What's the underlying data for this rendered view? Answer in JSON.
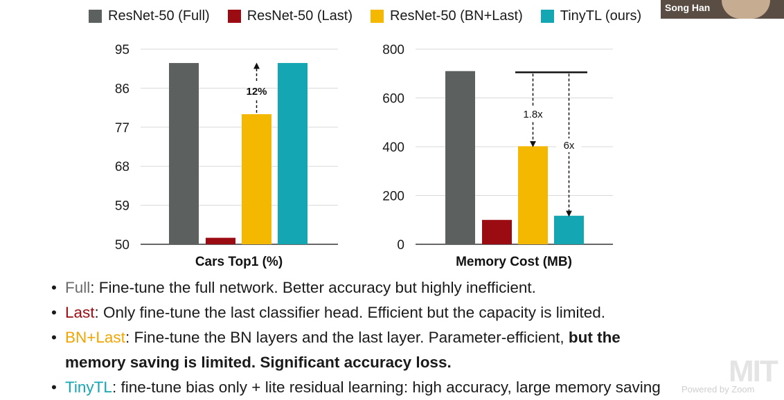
{
  "legend": [
    {
      "label": "ResNet-50 (Full)",
      "color": "#5c615f"
    },
    {
      "label": "ResNet-50 (Last)",
      "color": "#9b0c12"
    },
    {
      "label": "ResNet-50 (BN+Last)",
      "color": "#f5b800"
    },
    {
      "label": "TinyTL (ours)",
      "color": "#14a6b3"
    }
  ],
  "chart_data": [
    {
      "type": "bar",
      "title": "",
      "xlabel": "Cars Top1 (%)",
      "ylabel": "",
      "ylim": [
        50,
        95
      ],
      "yticks": [
        50,
        59,
        68,
        77,
        86,
        95
      ],
      "categories": [
        "ResNet-50 (Full)",
        "ResNet-50 (Last)",
        "ResNet-50 (BN+Last)",
        "TinyTL (ours)"
      ],
      "values": [
        91.8,
        51.5,
        80.0,
        91.8
      ],
      "colors": [
        "#5c615f",
        "#9b0c12",
        "#f5b800",
        "#14a6b3"
      ],
      "grid": true,
      "annotations": [
        {
          "text": "12%",
          "from": 80.0,
          "to": 91.8,
          "category_index": 2
        }
      ]
    },
    {
      "type": "bar",
      "title": "",
      "xlabel": "Memory Cost (MB)",
      "ylabel": "",
      "ylim": [
        0,
        800
      ],
      "yticks": [
        0,
        200,
        400,
        600,
        800
      ],
      "categories": [
        "ResNet-50 (Full)",
        "ResNet-50 (Last)",
        "ResNet-50 (BN+Last)",
        "TinyTL (ours)"
      ],
      "values": [
        710,
        100,
        402,
        117
      ],
      "colors": [
        "#5c615f",
        "#9b0c12",
        "#f5b800",
        "#14a6b3"
      ],
      "grid": true,
      "annotations": [
        {
          "text": "1.8x",
          "from": 705,
          "to": 402,
          "category_index": 2
        },
        {
          "text": "6x",
          "from": 705,
          "to": 117,
          "category_index": 3
        }
      ]
    }
  ],
  "bullets": [
    {
      "key": "Full",
      "rest": ": Fine-tune the full network. Better accuracy but highly inefficient.",
      "bold": "",
      "line2": ""
    },
    {
      "key": "Last",
      "rest": ": Only fine-tune the last classifier head. Efficient but the capacity is limited.",
      "bold": "",
      "line2": ""
    },
    {
      "key": "BN+Last",
      "rest": ": Fine-tune the BN layers and the last layer. Parameter-efficient, ",
      "bold": "but the",
      "line2": "memory saving is limited. Significant accuracy loss."
    },
    {
      "key": "TinyTL",
      "rest": ": fine-tune bias only + lite residual learning: high accuracy, large memory saving",
      "bold": "",
      "line2": ""
    }
  ],
  "bullet_char": "•",
  "speaker": {
    "name": "Song Han"
  },
  "logo": "MIT",
  "watermark": "Powered by Zoom"
}
